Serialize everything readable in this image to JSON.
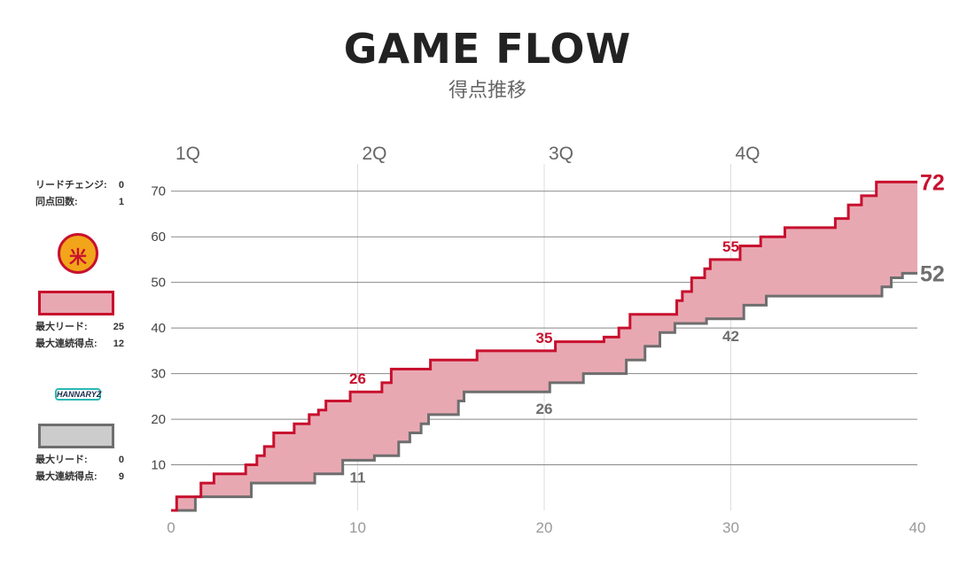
{
  "header": {
    "title": "GAME FLOW",
    "subtitle": "得点推移"
  },
  "summary": {
    "lead_changes_label": "リードチェンジ:",
    "lead_changes": "0",
    "ties_label": "同点回数:",
    "ties": "1"
  },
  "home": {
    "logo_icon": "nagoya-team-logo-icon",
    "logo_text": "米",
    "color": "#c8102e",
    "fill": "#e8a8b2",
    "max_lead_label": "最大リード:",
    "max_lead": "25",
    "max_run_label": "最大連続得点:",
    "max_run": "12"
  },
  "away": {
    "logo_icon": "hannaryz-team-logo-icon",
    "logo_text": "HANNARYZ",
    "color": "#6e6e6e",
    "fill": "#cccccc",
    "max_lead_label": "最大リード:",
    "max_lead": "0",
    "max_run_label": "最大連続得点:",
    "max_run": "9"
  },
  "chart_data": {
    "type": "area",
    "title": "GAME FLOW",
    "subtitle": "得点推移",
    "xlabel": "",
    "ylabel": "",
    "xlim": [
      0,
      40
    ],
    "ylim": [
      0,
      75
    ],
    "x_ticks": [
      "0",
      "10",
      "20",
      "30",
      "40"
    ],
    "y_ticks": [
      "10",
      "20",
      "30",
      "40",
      "50",
      "60",
      "70"
    ],
    "quarters": [
      "1Q",
      "2Q",
      "3Q",
      "4Q"
    ],
    "grid": true,
    "series": [
      {
        "team": "home",
        "color": "#c8102e",
        "points": [
          [
            0,
            0
          ],
          [
            0.3,
            0
          ],
          [
            0.3,
            3
          ],
          [
            1.6,
            3
          ],
          [
            1.6,
            6
          ],
          [
            2.3,
            6
          ],
          [
            2.3,
            8
          ],
          [
            4.0,
            8
          ],
          [
            4.0,
            10
          ],
          [
            4.6,
            10
          ],
          [
            4.6,
            12
          ],
          [
            5.0,
            12
          ],
          [
            5.0,
            14
          ],
          [
            5.5,
            14
          ],
          [
            5.5,
            17
          ],
          [
            6.6,
            17
          ],
          [
            6.6,
            19
          ],
          [
            7.4,
            19
          ],
          [
            7.4,
            21
          ],
          [
            7.9,
            21
          ],
          [
            7.9,
            22
          ],
          [
            8.3,
            22
          ],
          [
            8.3,
            24
          ],
          [
            9.6,
            24
          ],
          [
            9.6,
            26
          ],
          [
            11.3,
            26
          ],
          [
            11.3,
            28
          ],
          [
            11.8,
            28
          ],
          [
            11.8,
            31
          ],
          [
            13.9,
            31
          ],
          [
            13.9,
            33
          ],
          [
            16.4,
            33
          ],
          [
            16.4,
            35
          ],
          [
            20.6,
            35
          ],
          [
            20.6,
            37
          ],
          [
            23.2,
            37
          ],
          [
            23.2,
            38
          ],
          [
            24.0,
            38
          ],
          [
            24.0,
            40
          ],
          [
            24.6,
            40
          ],
          [
            24.6,
            43
          ],
          [
            27.1,
            43
          ],
          [
            27.1,
            46
          ],
          [
            27.4,
            46
          ],
          [
            27.4,
            48
          ],
          [
            27.9,
            48
          ],
          [
            27.9,
            51
          ],
          [
            28.6,
            51
          ],
          [
            28.6,
            53
          ],
          [
            28.9,
            53
          ],
          [
            28.9,
            55
          ],
          [
            30.5,
            55
          ],
          [
            30.5,
            58
          ],
          [
            31.6,
            58
          ],
          [
            31.6,
            60
          ],
          [
            32.9,
            60
          ],
          [
            32.9,
            62
          ],
          [
            35.6,
            62
          ],
          [
            35.6,
            64
          ],
          [
            36.3,
            64
          ],
          [
            36.3,
            67
          ],
          [
            37.0,
            67
          ],
          [
            37.0,
            69
          ],
          [
            37.8,
            69
          ],
          [
            37.8,
            72
          ],
          [
            40,
            72
          ]
        ],
        "annotations": [
          {
            "x": 10,
            "y": 26,
            "label": "26"
          },
          {
            "x": 20,
            "y": 35,
            "label": "35"
          },
          {
            "x": 30,
            "y": 55,
            "label": "55"
          }
        ]
      },
      {
        "team": "away",
        "color": "#6e6e6e",
        "points": [
          [
            0,
            0
          ],
          [
            1.3,
            0
          ],
          [
            1.3,
            3
          ],
          [
            4.3,
            3
          ],
          [
            4.3,
            6
          ],
          [
            7.7,
            6
          ],
          [
            7.7,
            8
          ],
          [
            9.2,
            8
          ],
          [
            9.2,
            11
          ],
          [
            10.9,
            11
          ],
          [
            10.9,
            12
          ],
          [
            12.2,
            12
          ],
          [
            12.2,
            15
          ],
          [
            12.8,
            15
          ],
          [
            12.8,
            17
          ],
          [
            13.4,
            17
          ],
          [
            13.4,
            19
          ],
          [
            13.8,
            19
          ],
          [
            13.8,
            21
          ],
          [
            15.4,
            21
          ],
          [
            15.4,
            24
          ],
          [
            15.7,
            24
          ],
          [
            15.7,
            26
          ],
          [
            20.3,
            26
          ],
          [
            20.3,
            28
          ],
          [
            22.1,
            28
          ],
          [
            22.1,
            30
          ],
          [
            24.4,
            30
          ],
          [
            24.4,
            33
          ],
          [
            25.4,
            33
          ],
          [
            25.4,
            36
          ],
          [
            26.2,
            36
          ],
          [
            26.2,
            39
          ],
          [
            27.0,
            39
          ],
          [
            27.0,
            41
          ],
          [
            28.7,
            41
          ],
          [
            28.7,
            42
          ],
          [
            30.7,
            42
          ],
          [
            30.7,
            45
          ],
          [
            31.9,
            45
          ],
          [
            31.9,
            47
          ],
          [
            38.1,
            47
          ],
          [
            38.1,
            49
          ],
          [
            38.6,
            49
          ],
          [
            38.6,
            51
          ],
          [
            39.2,
            51
          ],
          [
            39.2,
            52
          ],
          [
            40,
            52
          ]
        ],
        "annotations": [
          {
            "x": 10,
            "y": 11,
            "label": "11"
          },
          {
            "x": 20,
            "y": 26,
            "label": "26"
          },
          {
            "x": 30,
            "y": 42,
            "label": "42"
          }
        ]
      }
    ],
    "final_scores": [
      {
        "team": "home",
        "value": 72
      },
      {
        "team": "away",
        "value": 52
      }
    ]
  }
}
